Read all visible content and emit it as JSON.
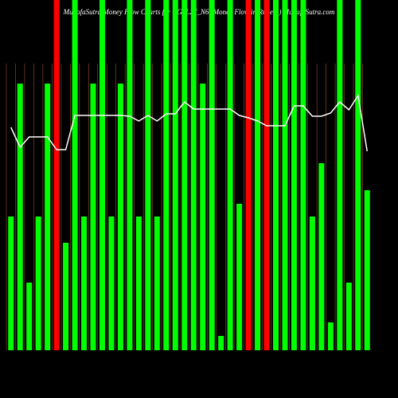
{
  "chart_data": {
    "type": "bar",
    "title": "MunafaSutra Money Flow Charts for CGSL27_N6 (Money Flow in Rupees) MunafaSutra.com",
    "values": [
      168,
      335,
      85,
      168,
      335,
      440,
      135,
      440,
      168,
      335,
      440,
      168,
      335,
      440,
      168,
      440,
      168,
      440,
      440,
      440,
      440,
      335,
      440,
      18,
      440,
      184,
      440,
      440,
      440,
      440,
      440,
      440,
      440,
      168,
      235,
      35,
      440,
      85,
      440,
      201
    ],
    "colors": [
      "#00ff00",
      "#00ff00",
      "#00ff00",
      "#00ff00",
      "#00ff00",
      "#ff0000",
      "#00ff00",
      "#00ff00",
      "#00ff00",
      "#00ff00",
      "#00ff00",
      "#00ff00",
      "#00ff00",
      "#00ff00",
      "#00ff00",
      "#00ff00",
      "#00ff00",
      "#00ff00",
      "#00ff00",
      "#00ff00",
      "#00ff00",
      "#00ff00",
      "#00ff00",
      "#00ff00",
      "#00ff00",
      "#00ff00",
      "#ff0000",
      "#00ff00",
      "#ff0000",
      "#00ff00",
      "#00ff00",
      "#00ff00",
      "#00ff00",
      "#00ff00",
      "#00ff00",
      "#00ff00",
      "#00ff00",
      "#00ff00",
      "#00ff00",
      "#00ff00"
    ],
    "line": {
      "color": "#ffffff",
      "values": [
        280,
        255,
        268,
        268,
        268,
        252,
        252,
        295,
        295,
        295,
        295,
        295,
        295,
        294,
        288,
        295,
        288,
        297,
        297,
        312,
        303,
        303,
        303,
        303,
        303,
        295,
        292,
        288,
        282,
        282,
        282,
        307,
        307,
        294,
        294,
        298,
        312,
        302,
        320,
        250
      ]
    },
    "ylim": [
      0,
      440
    ]
  }
}
